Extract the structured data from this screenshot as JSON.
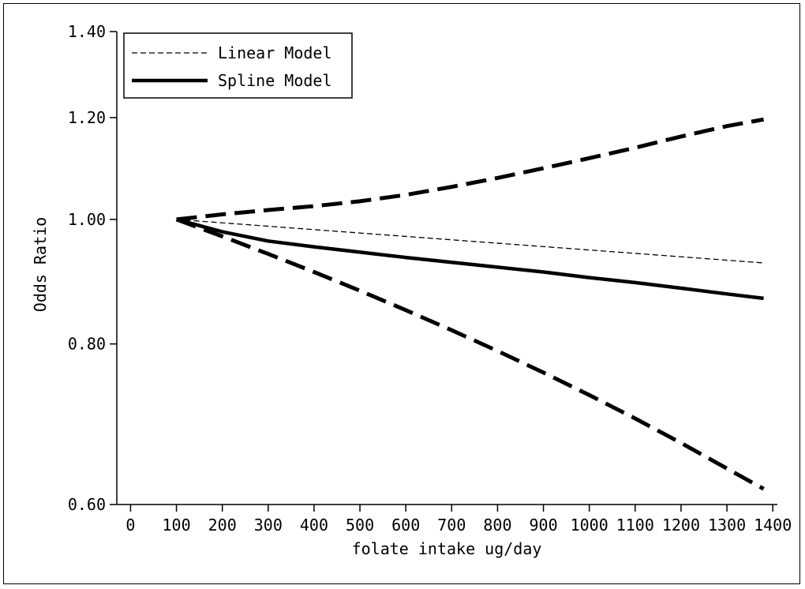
{
  "chart_data": {
    "type": "line",
    "title": "",
    "xlabel": "folate intake ug/day",
    "ylabel": "Odds Ratio",
    "xlim": [
      -30,
      1410
    ],
    "ylim": [
      0.6,
      1.4
    ],
    "y_scale": "log",
    "x_ticks": [
      0,
      100,
      200,
      300,
      400,
      500,
      600,
      700,
      800,
      900,
      1000,
      1100,
      1200,
      1300,
      1400
    ],
    "y_ticks": [
      0.6,
      0.8,
      1.0,
      1.2,
      1.4
    ],
    "y_tick_labels": [
      "0.60",
      "0.80",
      "1.00",
      "1.20",
      "1.40"
    ],
    "grid": false,
    "legend_position": "top-left",
    "legend": [
      {
        "label": "Linear Model",
        "style": "thin-dashed"
      },
      {
        "label": "Spline Model",
        "style": "thick-solid"
      }
    ],
    "series": [
      {
        "name": "Linear Model",
        "style": "thin-dashed",
        "x": [
          100,
          1380
        ],
        "y": [
          1.0,
          0.925
        ]
      },
      {
        "name": "Spline Model",
        "style": "thick-solid",
        "x": [
          100,
          200,
          300,
          400,
          500,
          600,
          700,
          800,
          900,
          1000,
          1100,
          1200,
          1300,
          1380
        ],
        "y": [
          1.0,
          0.978,
          0.962,
          0.952,
          0.943,
          0.934,
          0.926,
          0.918,
          0.91,
          0.901,
          0.893,
          0.884,
          0.875,
          0.868
        ]
      },
      {
        "style": "thick-dashed",
        "x": [
          100,
          200,
          300,
          400,
          500,
          600,
          700,
          800,
          900,
          1000,
          1100,
          1200,
          1300,
          1380
        ],
        "y": [
          1.0,
          1.009,
          1.017,
          1.024,
          1.033,
          1.045,
          1.06,
          1.077,
          1.096,
          1.116,
          1.137,
          1.16,
          1.182,
          1.196
        ]
      },
      {
        "style": "thick-dashed",
        "x": [
          100,
          200,
          300,
          400,
          500,
          600,
          700,
          800,
          900,
          1000,
          1100,
          1200,
          1300,
          1380
        ],
        "y": [
          1.0,
          0.97,
          0.94,
          0.91,
          0.88,
          0.85,
          0.82,
          0.79,
          0.76,
          0.73,
          0.7,
          0.67,
          0.64,
          0.617
        ]
      }
    ]
  }
}
